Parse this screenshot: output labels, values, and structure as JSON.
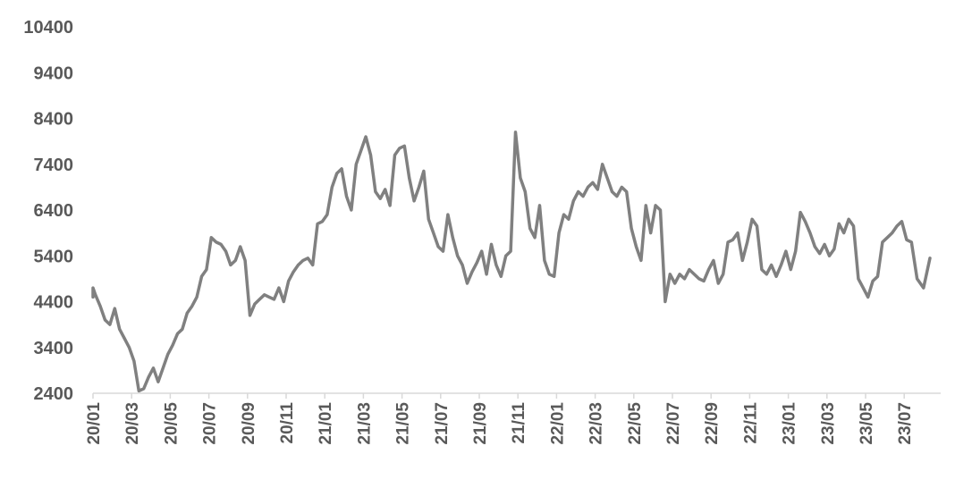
{
  "chart_data": {
    "type": "line",
    "title": "",
    "xlabel": "",
    "ylabel": "",
    "ylim": [
      2400,
      10400
    ],
    "yticks": [
      2400,
      3400,
      4400,
      5400,
      6400,
      7400,
      8400,
      9400,
      10400
    ],
    "grid": false,
    "legend": "none",
    "line_color": "#808080",
    "xticks": [
      "20/01",
      "20/03",
      "20/05",
      "20/07",
      "20/09",
      "20/11",
      "21/01",
      "21/03",
      "21/05",
      "21/07",
      "21/09",
      "21/11",
      "22/01",
      "22/03",
      "22/05",
      "22/07",
      "22/09",
      "22/11",
      "23/01",
      "23/03",
      "23/05",
      "23/07"
    ],
    "x": [
      "20/01",
      "20/01",
      "20/01",
      "20/01",
      "20/02",
      "20/02",
      "20/02",
      "20/02",
      "20/03",
      "20/03",
      "20/03",
      "20/03",
      "20/04",
      "20/04",
      "20/04",
      "20/04",
      "20/05",
      "20/05",
      "20/05",
      "20/05",
      "20/06",
      "20/06",
      "20/06",
      "20/06",
      "20/07",
      "20/07",
      "20/07",
      "20/07",
      "20/08",
      "20/08",
      "20/08",
      "20/08",
      "20/09",
      "20/09",
      "20/09",
      "20/09",
      "20/10",
      "20/10",
      "20/10",
      "20/10",
      "20/11",
      "20/11",
      "20/11",
      "20/11",
      "20/12",
      "20/12",
      "20/12",
      "20/12",
      "21/01",
      "21/01",
      "21/01",
      "21/01",
      "21/02",
      "21/02",
      "21/02",
      "21/02",
      "21/03",
      "21/03",
      "21/03",
      "21/03",
      "21/04",
      "21/04",
      "21/04",
      "21/04",
      "21/05",
      "21/05",
      "21/05",
      "21/05",
      "21/06",
      "21/06",
      "21/06",
      "21/06",
      "21/07",
      "21/07",
      "21/07",
      "21/07",
      "21/08",
      "21/08",
      "21/08",
      "21/08",
      "21/09",
      "21/09",
      "21/09",
      "21/09",
      "21/10",
      "21/10",
      "21/10",
      "21/10",
      "21/11",
      "21/11",
      "21/11",
      "21/11",
      "21/12",
      "21/12",
      "21/12",
      "21/12",
      "22/01",
      "22/01",
      "22/01",
      "22/01",
      "22/02",
      "22/02",
      "22/02",
      "22/02",
      "22/03",
      "22/03",
      "22/03",
      "22/03",
      "22/04",
      "22/04",
      "22/04",
      "22/04",
      "22/05",
      "22/05",
      "22/05",
      "22/05",
      "22/06",
      "22/06",
      "22/06",
      "22/06",
      "22/07",
      "22/07",
      "22/07",
      "22/07",
      "22/08",
      "22/08",
      "22/08",
      "22/08",
      "22/09",
      "22/09",
      "22/09",
      "22/09",
      "22/10",
      "22/10",
      "22/10",
      "22/10",
      "22/11",
      "22/11",
      "22/11",
      "22/11",
      "22/12",
      "22/12",
      "22/12",
      "22/12",
      "23/01",
      "23/01",
      "23/01",
      "23/01",
      "23/02",
      "23/02",
      "23/02",
      "23/02",
      "23/03",
      "23/03",
      "23/03",
      "23/03",
      "23/04",
      "23/04",
      "23/04",
      "23/04",
      "23/05",
      "23/05",
      "23/05",
      "23/05",
      "23/06",
      "23/06",
      "23/06",
      "23/06",
      "23/07",
      "23/07",
      "23/07",
      "23/07",
      "23/08",
      "23/08",
      "23/08"
    ],
    "series": [
      {
        "values": [
          4500,
          4700,
          4550,
          4300,
          4000,
          3900,
          4250,
          3800,
          3600,
          3400,
          3100,
          2450,
          2500,
          2750,
          2950,
          2650,
          2950,
          3250,
          3450,
          3700,
          3800,
          4150,
          4300,
          4500,
          4950,
          5100,
          5800,
          5700,
          5650,
          5500,
          5200,
          5300,
          5600,
          5300,
          4100,
          4350,
          4450,
          4550,
          4500,
          4450,
          4700,
          4400,
          4850,
          5050,
          5200,
          5300,
          5350,
          5200,
          6100,
          6150,
          6300,
          6900,
          7200,
          7300,
          6700,
          6400,
          7400,
          7700,
          8000,
          7600,
          6800,
          6650,
          6850,
          6500,
          7600,
          7750,
          7800,
          7100,
          6600,
          6900,
          7250,
          6200,
          5900,
          5600,
          5500,
          6300,
          5800,
          5400,
          5200,
          4800,
          5050,
          5250,
          5500,
          5000,
          5650,
          5200,
          4950,
          5400,
          5500,
          8100,
          7100,
          6800,
          6000,
          5800,
          6500,
          5300,
          5000,
          4950,
          5900,
          6300,
          6200,
          6600,
          6800,
          6700,
          6900,
          7000,
          6850,
          7400,
          7100,
          6800,
          6700,
          6900,
          6800,
          6000,
          5600,
          5300,
          6500,
          5900,
          6500,
          6400,
          4400,
          5000,
          4800,
          5000,
          4900,
          5100,
          5000,
          4900,
          4850,
          5100,
          5300,
          4800,
          5000,
          5700,
          5750,
          5900,
          5300,
          5700,
          6200,
          6050,
          5100,
          5000,
          5200,
          4950,
          5200,
          5500,
          5100,
          5500,
          6350,
          6150,
          5900,
          5600,
          5450,
          5650,
          5400,
          5550,
          6100,
          5900,
          6200,
          6050,
          4900,
          4700,
          4500,
          4850,
          4950,
          5700,
          5800,
          5900,
          6050,
          6150,
          5750,
          5700,
          4900,
          4700,
          5350
        ]
      }
    ]
  }
}
